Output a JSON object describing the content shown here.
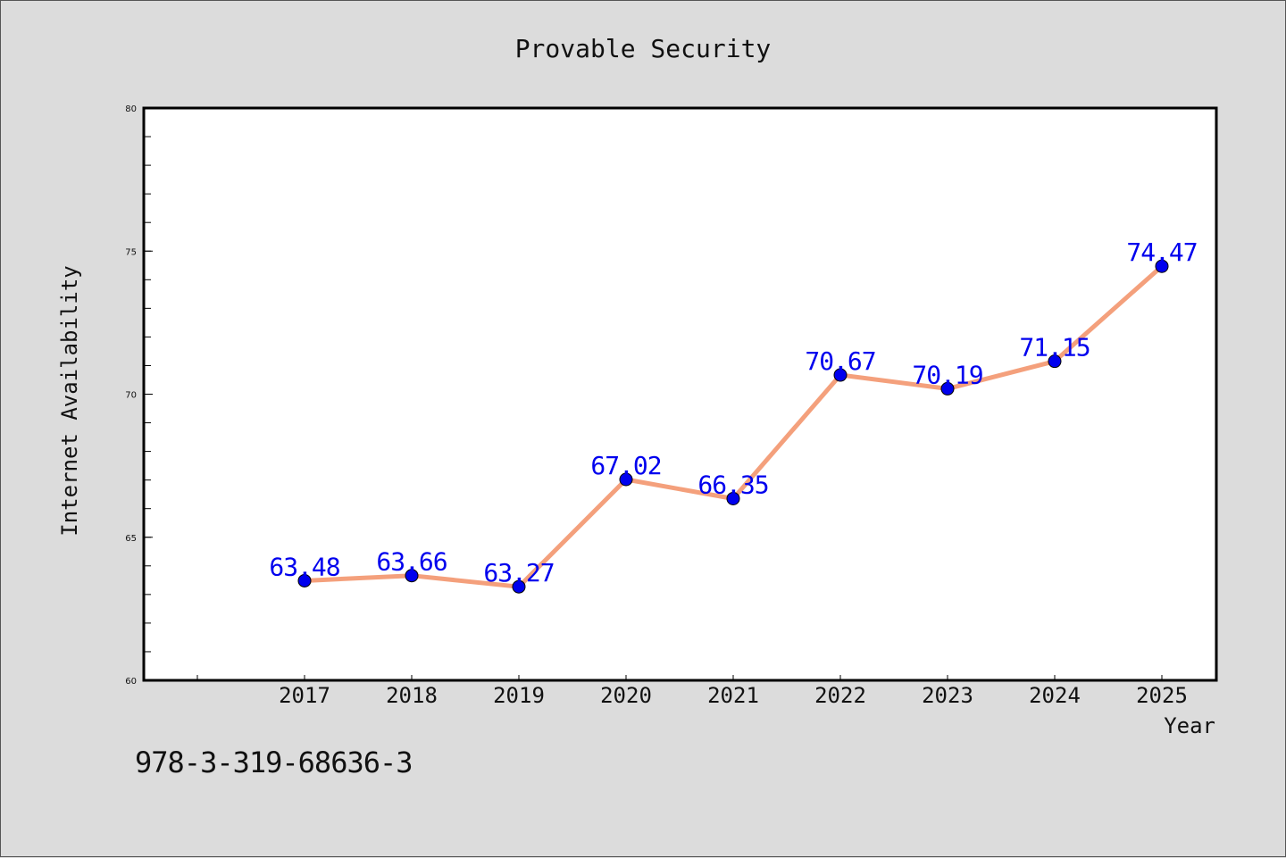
{
  "chart_data": {
    "type": "line",
    "title": "Provable Security",
    "xlabel": "Year",
    "ylabel": "Internet Availability",
    "categories": [
      "2017",
      "2018",
      "2019",
      "2020",
      "2021",
      "2022",
      "2023",
      "2024",
      "2025"
    ],
    "values": [
      63.48,
      63.66,
      63.27,
      67.02,
      66.35,
      70.67,
      70.19,
      71.15,
      74.47
    ],
    "data_labels": [
      "63.48",
      "63.66",
      "63.27",
      "67.02",
      "66.35",
      "70.67",
      "70.19",
      "71.15",
      "74.47"
    ],
    "ylim": [
      60,
      80
    ],
    "yticks": [
      60,
      65,
      70,
      75,
      80
    ],
    "ytick_labels": [
      "60",
      "65",
      "70",
      "75",
      "80"
    ],
    "grid": false,
    "line_color": "#f4a07c",
    "marker_color": "#0000ee",
    "label_color": "#0000ee"
  },
  "footer": {
    "isbn": "978-3-319-68636-3"
  }
}
